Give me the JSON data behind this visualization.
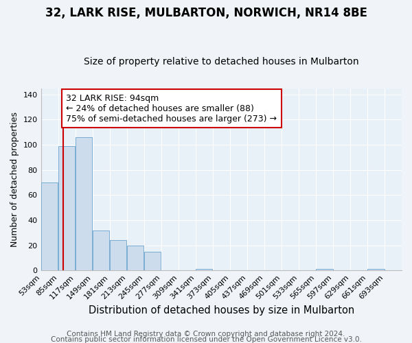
{
  "title": "32, LARK RISE, MULBARTON, NORWICH, NR14 8BE",
  "subtitle": "Size of property relative to detached houses in Mulbarton",
  "xlabel": "Distribution of detached houses by size in Mulbarton",
  "ylabel": "Number of detached properties",
  "footer1": "Contains HM Land Registry data © Crown copyright and database right 2024.",
  "footer2": "Contains public sector information licensed under the Open Government Licence v3.0.",
  "bin_labels": [
    "53sqm",
    "85sqm",
    "117sqm",
    "149sqm",
    "181sqm",
    "213sqm",
    "245sqm",
    "277sqm",
    "309sqm",
    "341sqm",
    "373sqm",
    "405sqm",
    "437sqm",
    "469sqm",
    "501sqm",
    "533sqm",
    "565sqm",
    "597sqm",
    "629sqm",
    "661sqm",
    "693sqm"
  ],
  "bar_values": [
    70,
    99,
    106,
    32,
    24,
    20,
    15,
    0,
    0,
    1,
    0,
    0,
    0,
    0,
    0,
    0,
    1,
    0,
    0,
    1,
    0
  ],
  "bar_color": "#ccdcec",
  "bar_edge_color": "#7aadd4",
  "red_line_x": 1.28,
  "annotation_text": "32 LARK RISE: 94sqm\n← 24% of detached houses are smaller (88)\n75% of semi-detached houses are larger (273) →",
  "annotation_box_color": "#ffffff",
  "annotation_border_color": "#cc0000",
  "ylim": [
    0,
    145
  ],
  "yticks": [
    0,
    20,
    40,
    60,
    80,
    100,
    120,
    140
  ],
  "background_color": "#f0f4f8",
  "plot_bg_color": "#e8f0f8",
  "grid_color": "#ffffff",
  "title_fontsize": 12,
  "subtitle_fontsize": 10,
  "xlabel_fontsize": 10.5,
  "ylabel_fontsize": 9,
  "tick_fontsize": 8,
  "annotation_fontsize": 9,
  "footer_fontsize": 7.5
}
